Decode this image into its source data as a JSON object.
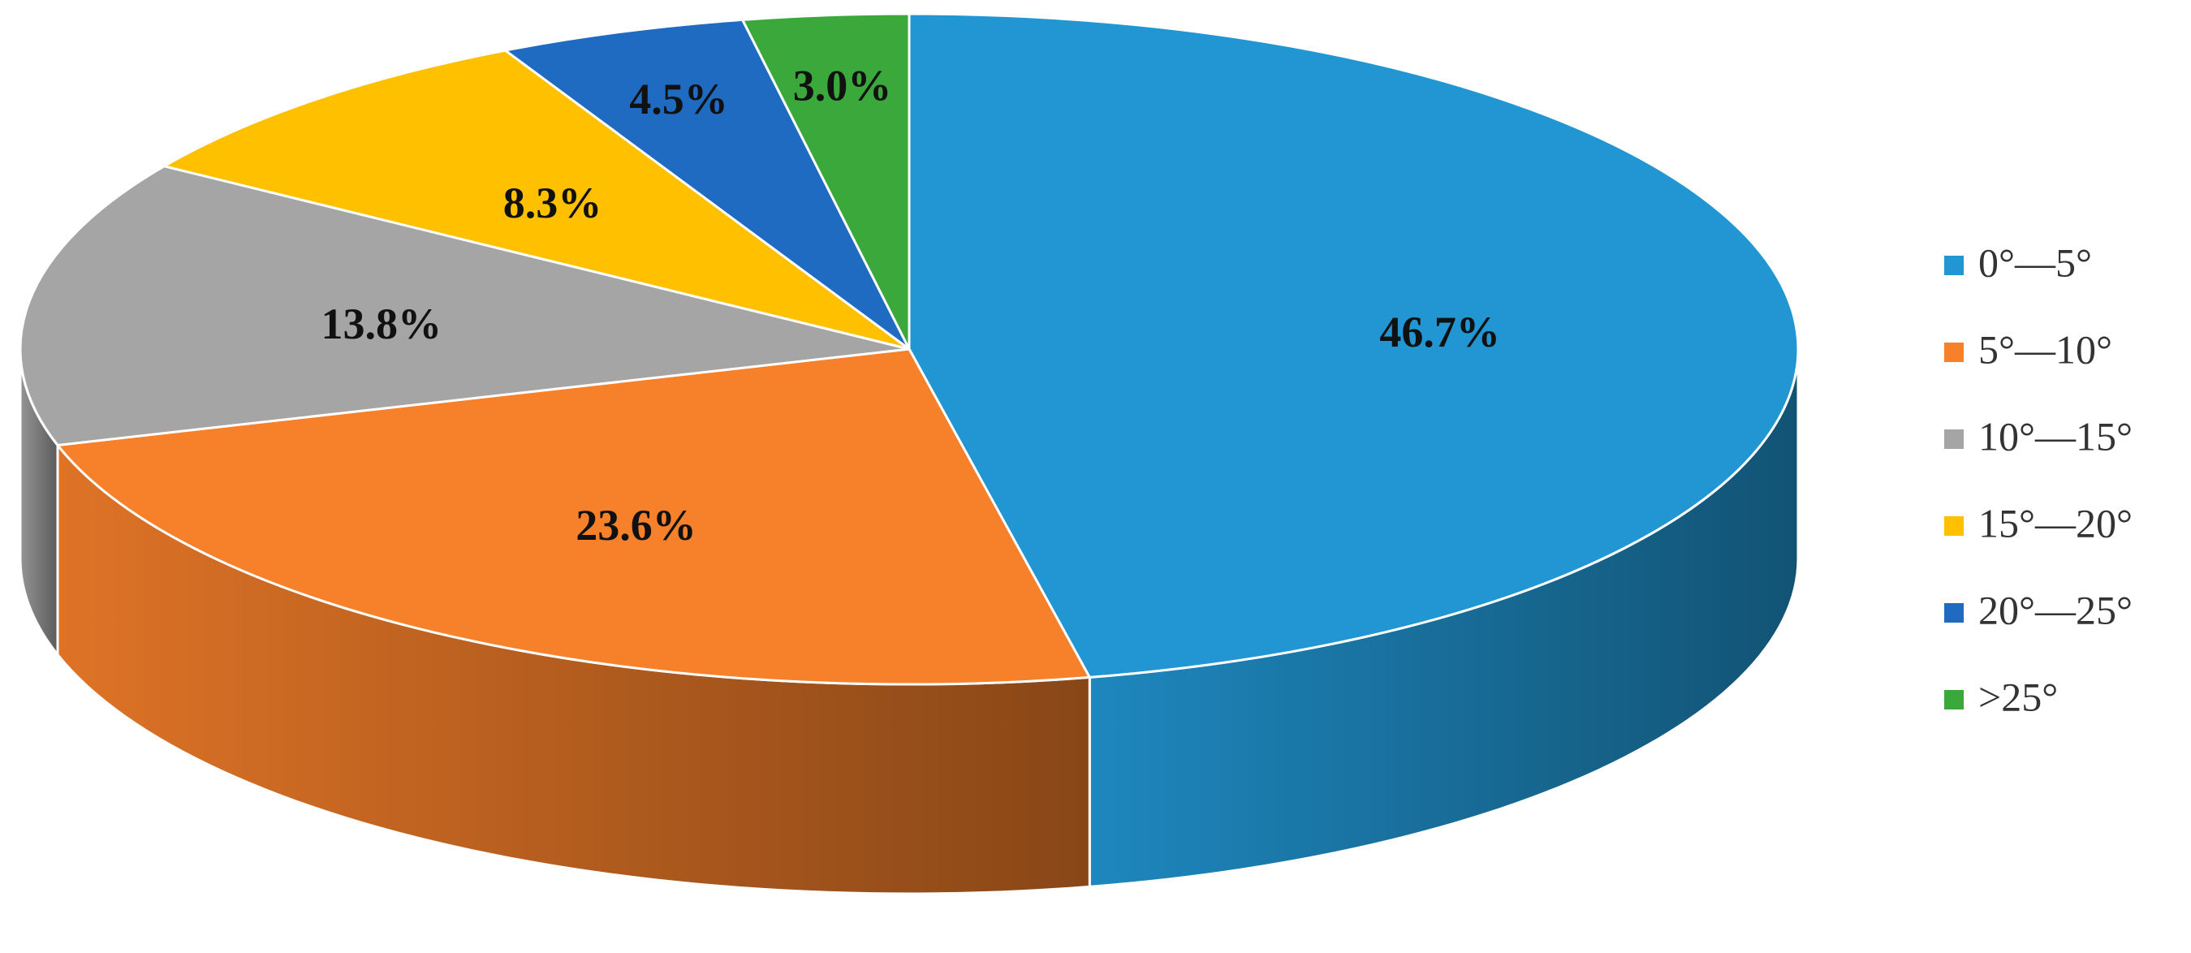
{
  "chart_data": {
    "type": "pie",
    "categories": [
      "0°—5°",
      "5°—10°",
      "10°—15°",
      "15°—20°",
      "20°—25°",
      ">25°"
    ],
    "values": [
      46.7,
      23.6,
      13.8,
      8.3,
      4.5,
      3.0
    ],
    "value_labels": [
      "46.7%",
      "23.6%",
      "13.8%",
      "8.3%",
      "4.5%",
      "3.0%"
    ],
    "colors": [
      "#2196d3",
      "#f7802a",
      "#a5a5a5",
      "#ffc000",
      "#1f6bc1",
      "#3aa83a"
    ],
    "legend": "right"
  }
}
